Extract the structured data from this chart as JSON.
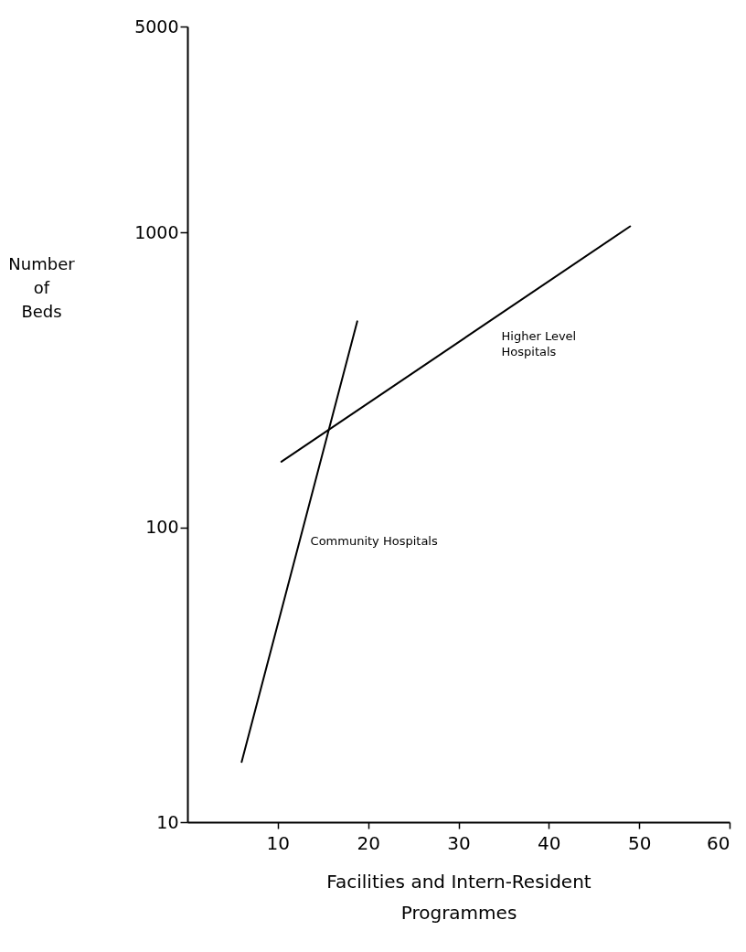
{
  "chart_data": {
    "type": "line",
    "xlabel": "Facilities and Intern-Resident Programmes",
    "ylabel": "Number of Beds",
    "log": "y",
    "xlim": [
      0,
      60
    ],
    "xticks": [
      10,
      20,
      30,
      40,
      50,
      60
    ],
    "ylim": [
      10,
      5000
    ],
    "yticks": [
      10,
      100,
      1000,
      5000
    ],
    "grid": false,
    "legend": false,
    "series": [
      {
        "name": "Community Hospitals",
        "color": "#000000",
        "x": [
          6,
          18.8
        ],
        "values": [
          16,
          500
        ]
      },
      {
        "name": "Higher Level Hospitals",
        "color": "#000000",
        "x": [
          10.4,
          49
        ],
        "values": [
          167,
          1050
        ]
      }
    ]
  }
}
